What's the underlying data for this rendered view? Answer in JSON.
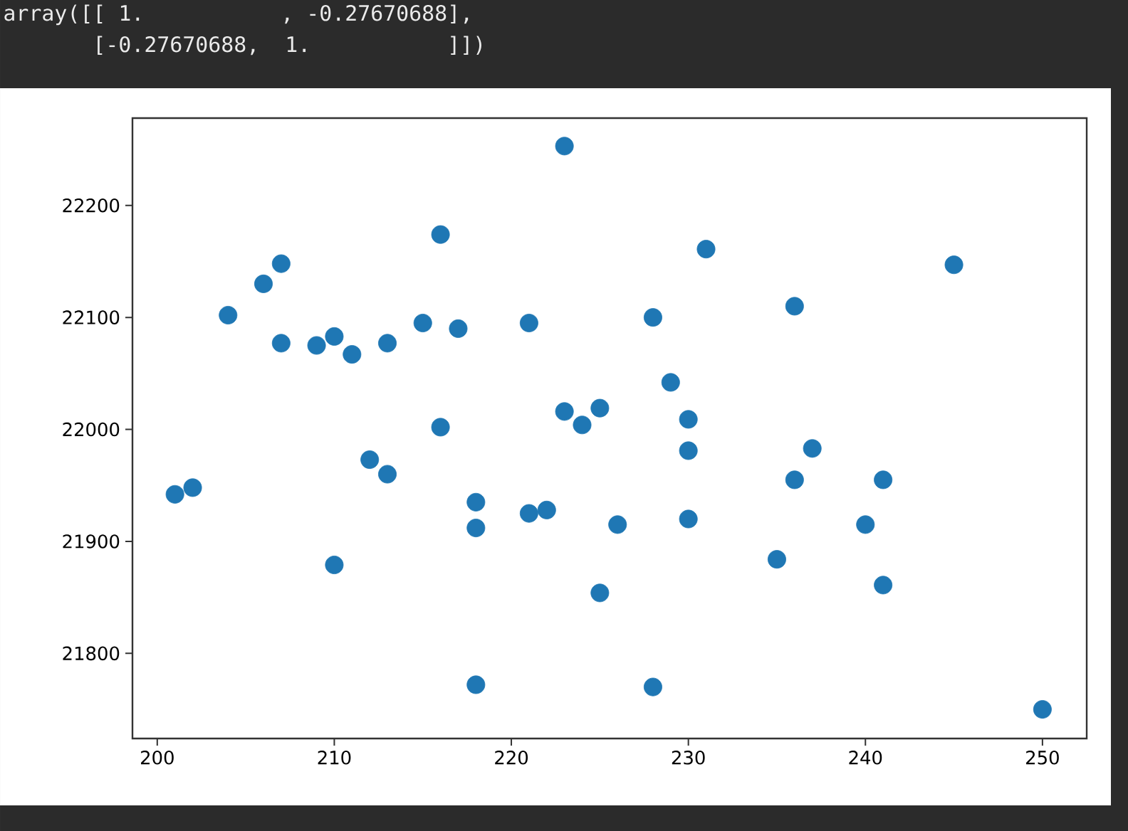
{
  "chart_data": {
    "type": "scatter",
    "xlim": [
      198.6,
      252.5
    ],
    "ylim": [
      21724,
      22278
    ],
    "xticks": [
      200,
      210,
      220,
      230,
      240,
      250
    ],
    "yticks": [
      21800,
      21900,
      22000,
      22100,
      22200
    ],
    "annotations": [
      "array([[ 1.        , -0.27670688],",
      "       [-0.27670688,  1.        ]])"
    ],
    "grid": false,
    "series": [
      {
        "color": "#1f77b4",
        "x": [
          201,
          202,
          204,
          206,
          207,
          207,
          209,
          210,
          211,
          213,
          212,
          213,
          210,
          215,
          216,
          217,
          216,
          218,
          218,
          218,
          221,
          221,
          222,
          223,
          223,
          224,
          225,
          225,
          226,
          228,
          228,
          229,
          230,
          230,
          230,
          231,
          235,
          236,
          236,
          237,
          240,
          241,
          241,
          245,
          250
        ],
        "values": [
          21942,
          21948,
          22102,
          22130,
          22148,
          22077,
          22075,
          22083,
          22067,
          22077,
          21973,
          21960,
          21879,
          22095,
          22174,
          22090,
          22002,
          21935,
          21912,
          21772,
          22095,
          21925,
          21928,
          22253,
          22016,
          22004,
          22019,
          21854,
          21915,
          22100,
          21770,
          22042,
          22009,
          21981,
          21920,
          22161,
          21884,
          22110,
          21955,
          21983,
          21915,
          21955,
          21861,
          22147,
          21750
        ]
      }
    ]
  }
}
